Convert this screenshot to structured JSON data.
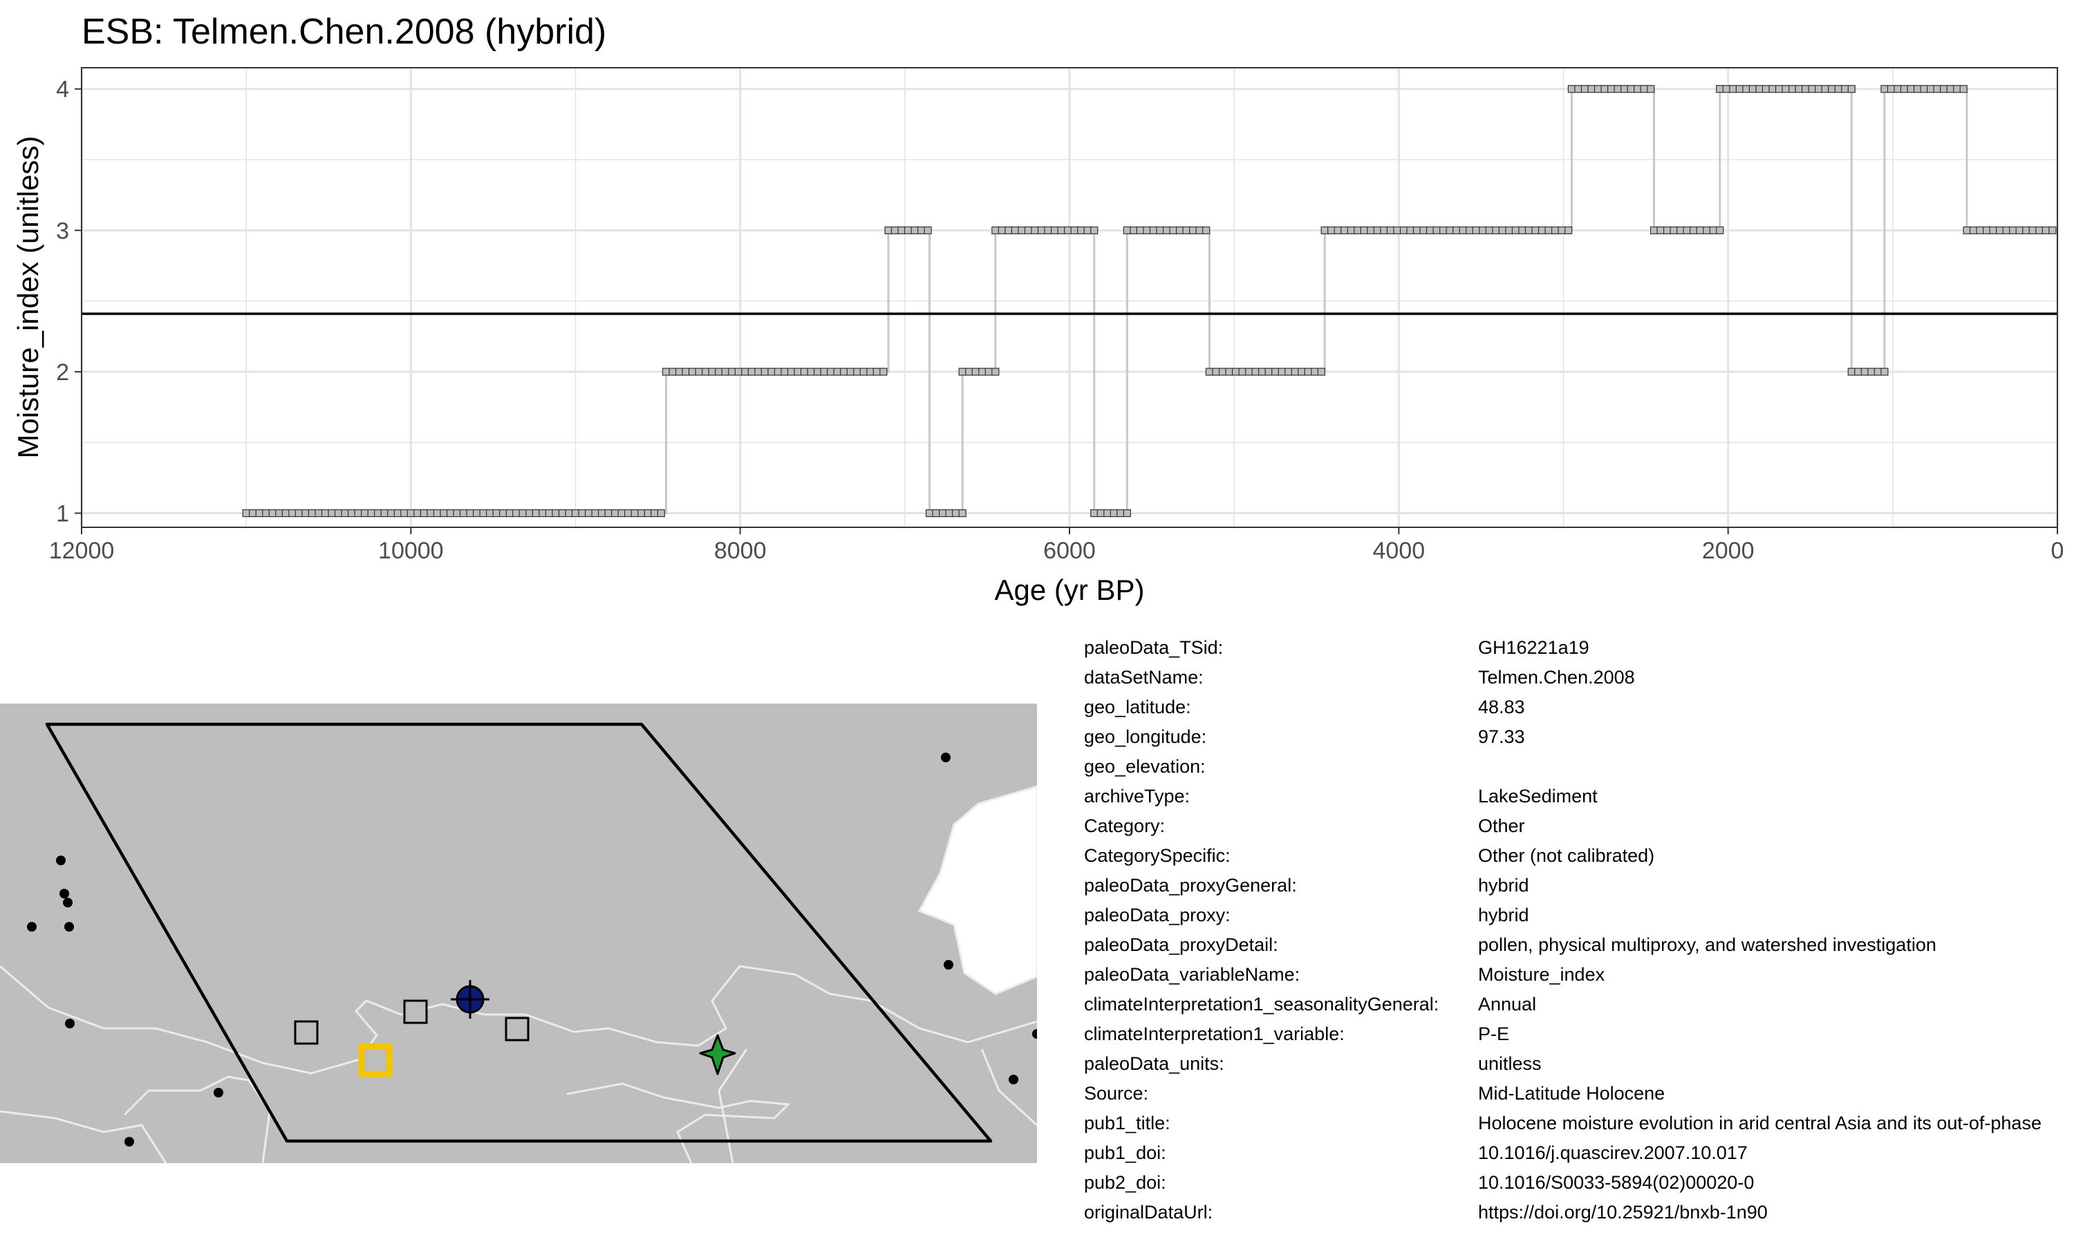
{
  "title": "ESB: Telmen.Chen.2008 (hybrid)",
  "chart_data": {
    "type": "line",
    "title": "ESB: Telmen.Chen.2008 (hybrid)",
    "xlabel": "Age (yr BP)",
    "ylabel": "Moisture_index (unitless)",
    "x_reversed": true,
    "xlim": [
      12000,
      0
    ],
    "ylim": [
      0.9,
      4.15
    ],
    "x_ticks": [
      12000,
      10000,
      8000,
      6000,
      4000,
      2000,
      0
    ],
    "y_ticks": [
      1,
      2,
      3,
      4
    ],
    "grid": true,
    "mean_line": 2.41,
    "step_spacing": 40,
    "segments": [
      {
        "start": 11000,
        "end": 8450,
        "value": 1
      },
      {
        "start": 8450,
        "end": 7100,
        "value": 2
      },
      {
        "start": 7100,
        "end": 6850,
        "value": 3
      },
      {
        "start": 6850,
        "end": 6650,
        "value": 1
      },
      {
        "start": 6650,
        "end": 6450,
        "value": 2
      },
      {
        "start": 6450,
        "end": 5850,
        "value": 3
      },
      {
        "start": 5850,
        "end": 5650,
        "value": 1
      },
      {
        "start": 5650,
        "end": 5150,
        "value": 3
      },
      {
        "start": 5150,
        "end": 4450,
        "value": 2
      },
      {
        "start": 4450,
        "end": 2950,
        "value": 3
      },
      {
        "start": 2950,
        "end": 2450,
        "value": 4
      },
      {
        "start": 2450,
        "end": 2050,
        "value": 3
      },
      {
        "start": 2050,
        "end": 1250,
        "value": 4
      },
      {
        "start": 1250,
        "end": 1050,
        "value": 2
      },
      {
        "start": 1050,
        "end": 550,
        "value": 4
      },
      {
        "start": 550,
        "end": 0,
        "value": 3
      }
    ],
    "colors": {
      "points_fill": "#bdbdbd",
      "points_stroke": "#333333",
      "step_line": "#c8c8c8",
      "mean_line": "#000000",
      "grid": "#e3e3e3"
    }
  },
  "map": {
    "background": "#bebebe",
    "symbols": [
      {
        "name": "record-square-1",
        "shape": "square"
      },
      {
        "name": "record-square-2",
        "shape": "square"
      },
      {
        "name": "record-square-3",
        "shape": "square"
      },
      {
        "name": "highlighted-site-square",
        "shape": "square",
        "color": "#f5c400"
      },
      {
        "name": "site-circle-marker",
        "shape": "circle",
        "color": "#0d1a7a"
      },
      {
        "name": "site-star-marker",
        "shape": "star",
        "color": "#1f9b2f"
      }
    ]
  },
  "metadata": [
    {
      "key": "paleoData_TSid:",
      "value": "GH16221a19"
    },
    {
      "key": "dataSetName:",
      "value": "Telmen.Chen.2008"
    },
    {
      "key": "geo_latitude:",
      "value": "48.83"
    },
    {
      "key": "geo_longitude:",
      "value": "97.33"
    },
    {
      "key": "geo_elevation:",
      "value": ""
    },
    {
      "key": "archiveType:",
      "value": "LakeSediment"
    },
    {
      "key": "Category:",
      "value": "Other"
    },
    {
      "key": "CategorySpecific:",
      "value": "Other (not calibrated)"
    },
    {
      "key": "paleoData_proxyGeneral:",
      "value": "hybrid"
    },
    {
      "key": "paleoData_proxy:",
      "value": "hybrid"
    },
    {
      "key": "paleoData_proxyDetail:",
      "value": "pollen, physical multiproxy, and watershed investigation"
    },
    {
      "key": "paleoData_variableName:",
      "value": "Moisture_index"
    },
    {
      "key": "climateInterpretation1_seasonalityGeneral:",
      "value": "Annual"
    },
    {
      "key": "climateInterpretation1_variable:",
      "value": "P-E"
    },
    {
      "key": "paleoData_units:",
      "value": "unitless"
    },
    {
      "key": "Source:",
      "value": "Mid-Latitude Holocene"
    },
    {
      "key": "pub1_title:",
      "value": "Holocene moisture evolution in arid central Asia and its out-of-phase"
    },
    {
      "key": "pub1_doi:",
      "value": "10.1016/j.quascirev.2007.10.017"
    },
    {
      "key": "pub2_doi:",
      "value": "10.1016/S0033-5894(02)00020-0"
    },
    {
      "key": "originalDataUrl:",
      "value": "https://doi.org/10.25921/bnxb-1n90"
    }
  ]
}
